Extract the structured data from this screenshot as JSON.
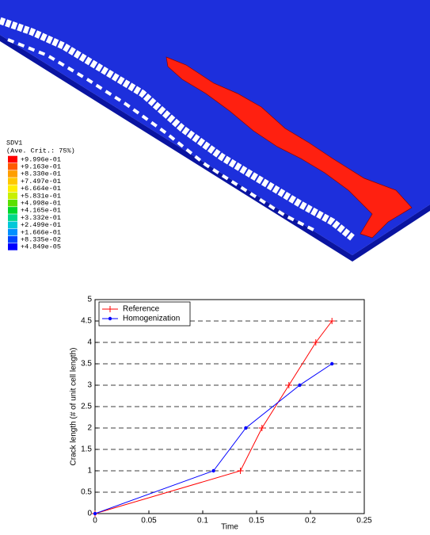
{
  "contour_legend": {
    "title": "SDV1",
    "subtitle": "(Ave. Crit.: 75%)",
    "levels": [
      "+9.996e-01",
      "+9.163e-01",
      "+8.330e-01",
      "+7.497e-01",
      "+6.664e-01",
      "+5.831e-01",
      "+4.998e-01",
      "+4.165e-01",
      "+3.332e-01",
      "+2.499e-01",
      "+1.666e-01",
      "+8.335e-02",
      "+4.849e-05"
    ],
    "colors": [
      "#ff0000",
      "#ff5a00",
      "#ff9e00",
      "#ffc800",
      "#ffee00",
      "#c8f000",
      "#5ae000",
      "#00d82a",
      "#00d88a",
      "#00c8d8",
      "#0090ff",
      "#0044ff",
      "#0000ff"
    ]
  },
  "chart_data": {
    "type": "line",
    "xlabel": "Time",
    "ylabel": "Crack length (# of unit cell length)",
    "xlim": [
      0,
      0.25
    ],
    "xticks": [
      0,
      0.05,
      0.1,
      0.15,
      0.2,
      0.25
    ],
    "ylim": [
      0,
      5
    ],
    "yticks": [
      0,
      0.5,
      1,
      1.5,
      2,
      2.5,
      3,
      3.5,
      4,
      4.5,
      5
    ],
    "grid": "y",
    "legend": "upper left",
    "series": [
      {
        "name": "Reference",
        "color": "#ff0000",
        "marker": "+",
        "x": [
          0,
          0.135,
          0.155,
          0.18,
          0.205,
          0.22
        ],
        "values": [
          0,
          1,
          2,
          3,
          4,
          4.5
        ]
      },
      {
        "name": "Homogenization",
        "color": "#0000ff",
        "marker": ".",
        "x": [
          0,
          0.11,
          0.14,
          0.19,
          0.22
        ],
        "values": [
          0,
          1,
          2,
          3,
          3.5
        ]
      }
    ]
  }
}
